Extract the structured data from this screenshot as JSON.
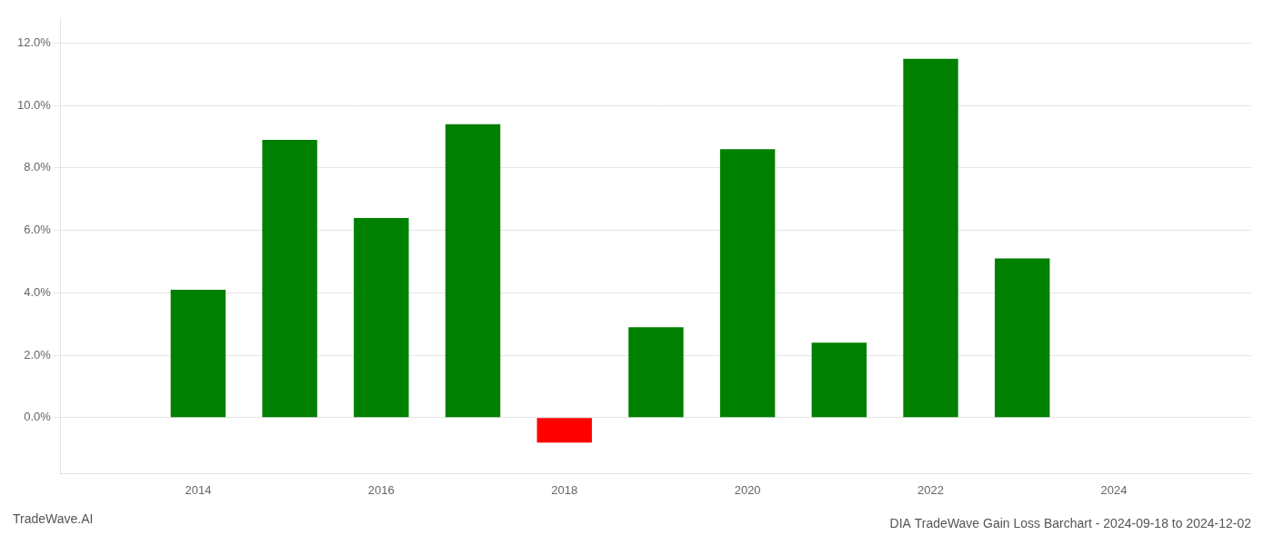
{
  "chart_data": {
    "type": "bar",
    "title": "DIA TradeWave Gain Loss Barchart - 2024-09-18 to 2024-12-02",
    "annotations": [
      {
        "text": "TradeWave.AI"
      }
    ],
    "x": [
      2014,
      2015,
      2016,
      2017,
      2018,
      2019,
      2020,
      2021,
      2022,
      2023
    ],
    "values": [
      0.041,
      0.089,
      0.064,
      0.094,
      -0.008,
      0.029,
      0.086,
      0.024,
      0.115,
      0.051
    ],
    "colors": [
      "#008000",
      "#008000",
      "#008000",
      "#008000",
      "#ff0000",
      "#008000",
      "#008000",
      "#008000",
      "#008000",
      "#008000"
    ],
    "xlim": [
      2012.5,
      2025.5
    ],
    "xticks": [
      2014,
      2016,
      2018,
      2020,
      2022,
      2024
    ],
    "ylim": [
      -0.018,
      0.128
    ],
    "yticks": [
      {
        "value": 0,
        "label": "0.0%"
      },
      {
        "value": 0.02,
        "label": "2.0%"
      },
      {
        "value": 0.04,
        "label": "4.0%"
      },
      {
        "value": 0.06,
        "label": "6.0%"
      },
      {
        "value": 0.08,
        "label": "8.0%"
      },
      {
        "value": 0.1,
        "label": "10.0%"
      },
      {
        "value": 0.12,
        "label": "12.0%"
      }
    ],
    "grid": true
  }
}
